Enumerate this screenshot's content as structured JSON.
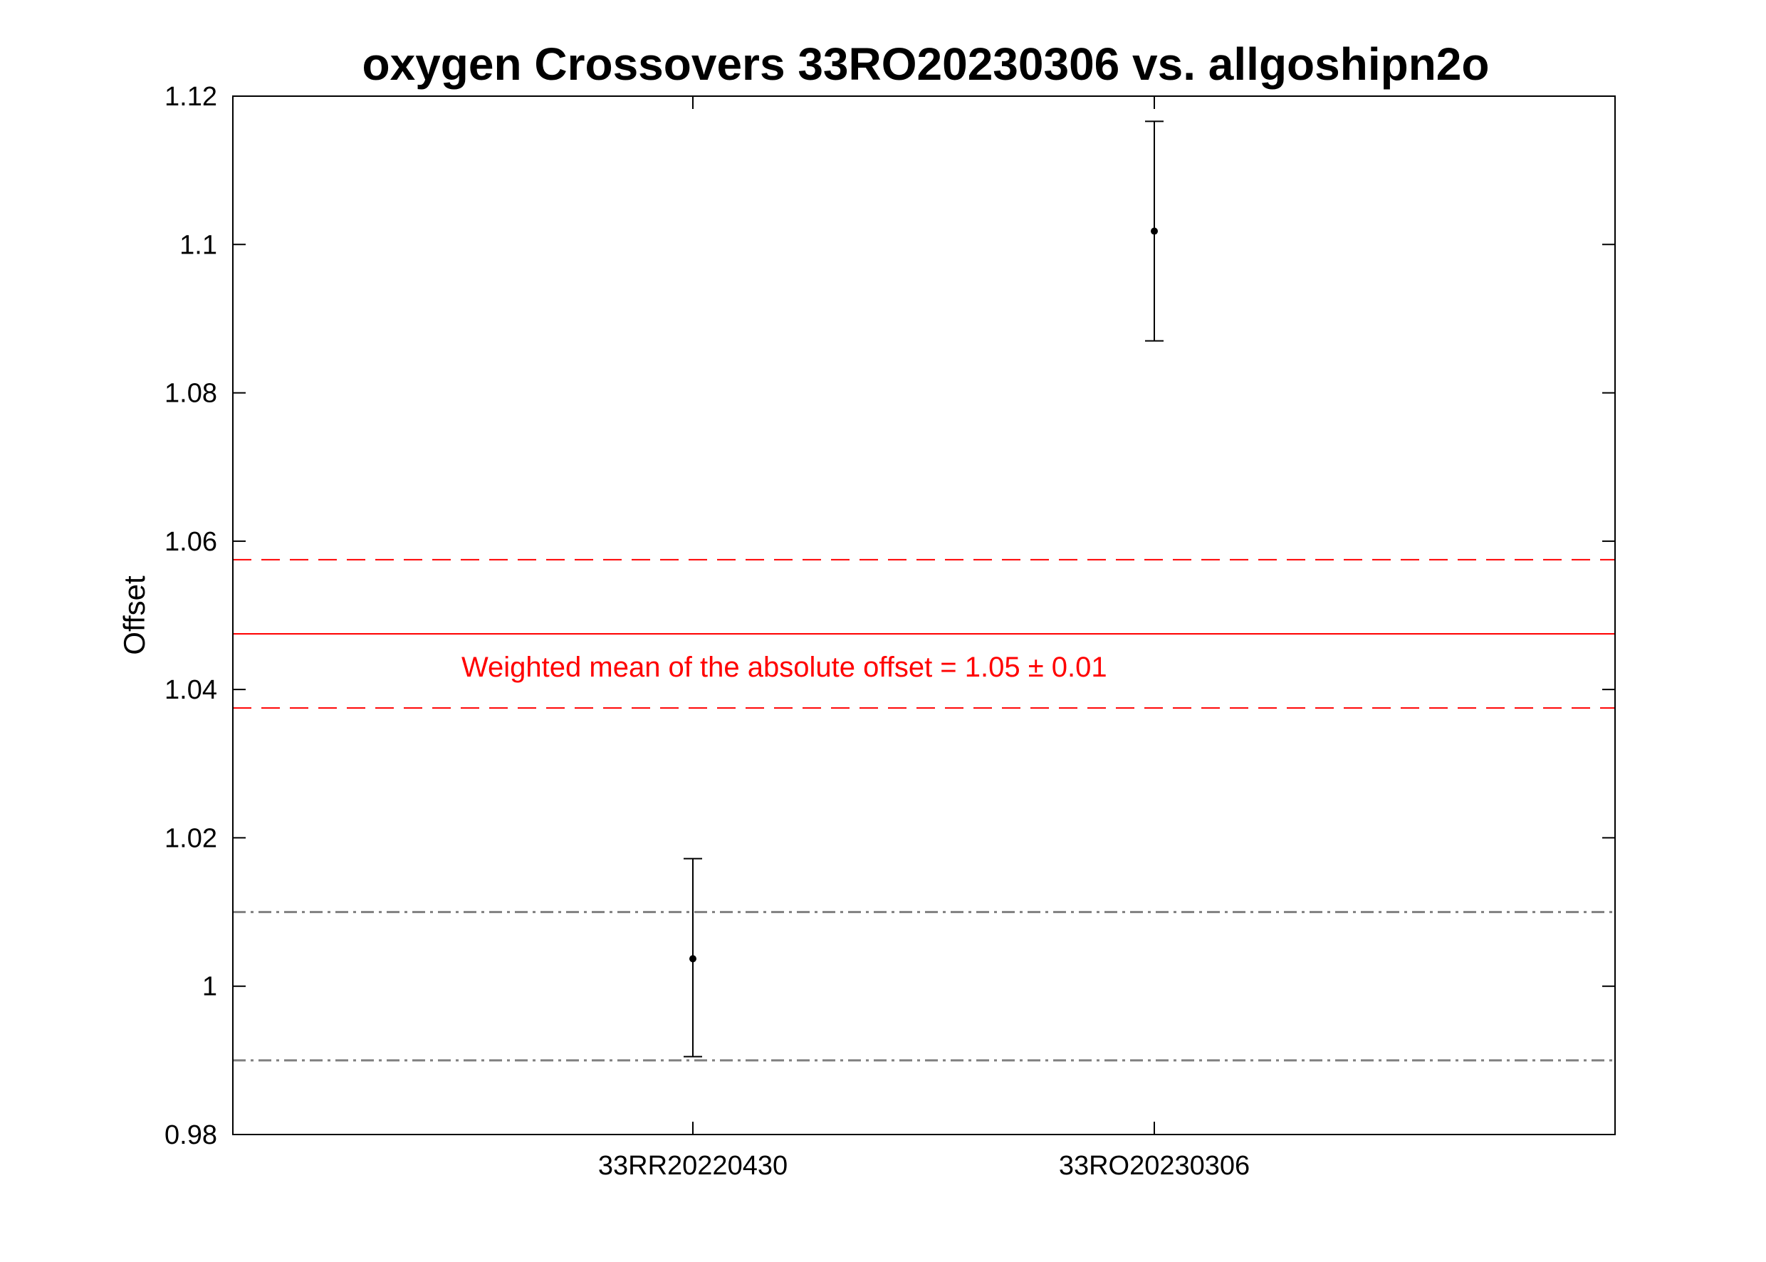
{
  "chart_data": {
    "type": "scatter",
    "title": "oxygen Crossovers 33RO20230306 vs. allgoshipn2o",
    "xlabel": "",
    "ylabel": "Offset",
    "ylim": [
      0.98,
      1.12
    ],
    "yticks": [
      0.98,
      1,
      1.02,
      1.04,
      1.06,
      1.08,
      1.1,
      1.12
    ],
    "ytick_labels": [
      "0.98",
      "1",
      "1.02",
      "1.04",
      "1.06",
      "1.08",
      "1.1",
      "1.12"
    ],
    "categories": [
      "33RR20220430",
      "33RO20230306"
    ],
    "points": [
      {
        "category": "33RR20220430",
        "y": 1.0037,
        "err_low": 0.9905,
        "err_high": 1.0172
      },
      {
        "category": "33RO20230306",
        "y": 1.1018,
        "err_low": 1.087,
        "err_high": 1.1166
      }
    ],
    "weighted_mean": {
      "value": 1.0475,
      "lower": 1.0375,
      "upper": 1.0575
    },
    "reference_band": {
      "lower": 0.99,
      "upper": 1.01
    },
    "annotation": "Weighted mean of the absolute offset = 1.05 ± 0.01",
    "grid": false,
    "colors": {
      "points": "#000000",
      "mean": "#ff0000",
      "reference": "#808080"
    }
  }
}
